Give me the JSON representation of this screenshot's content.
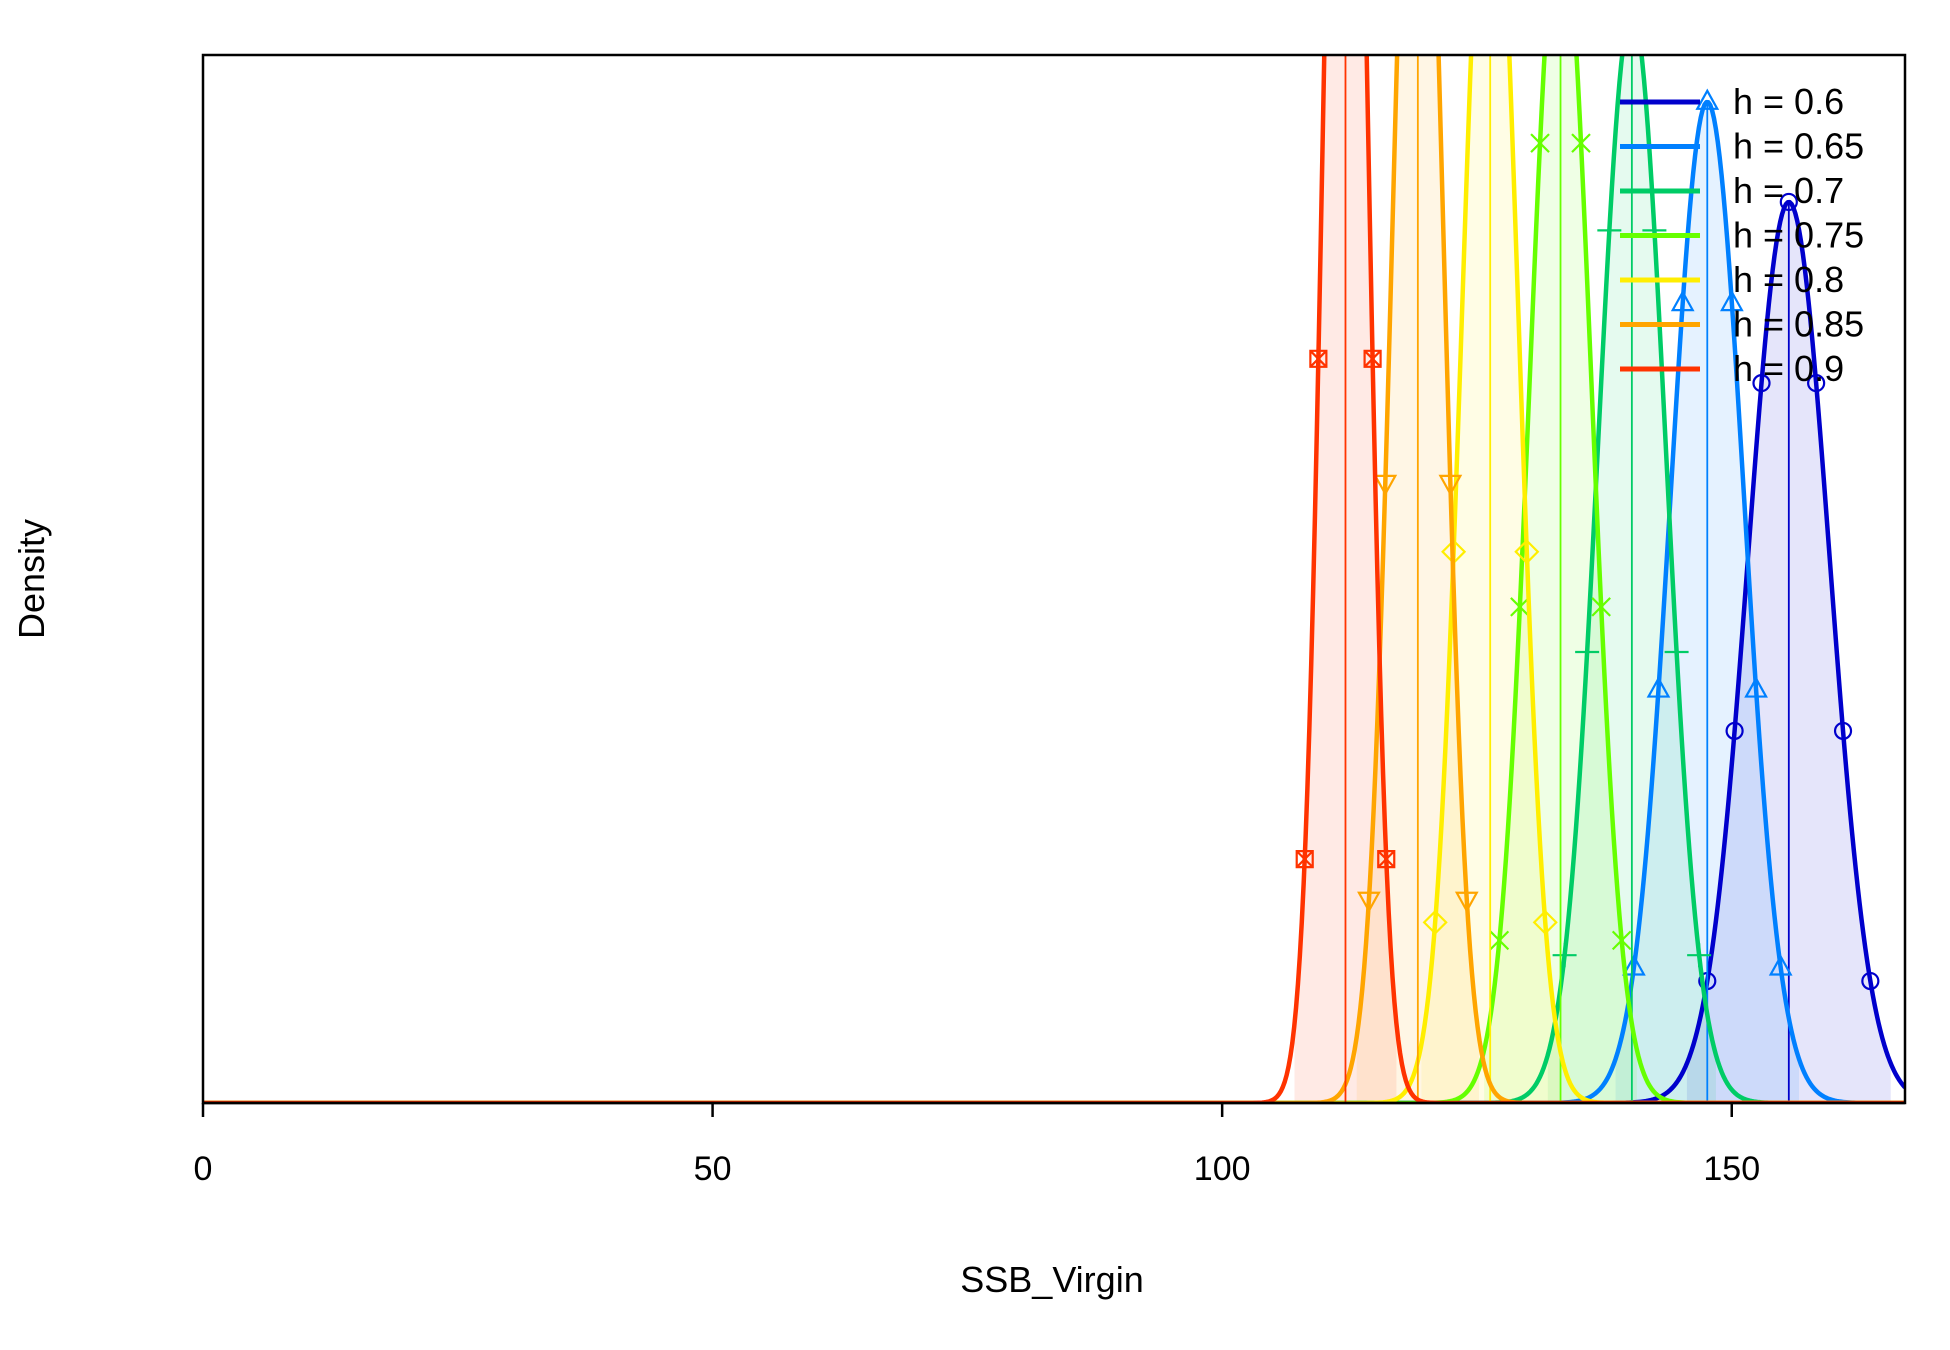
{
  "chart_data": {
    "type": "area",
    "title": "",
    "xlabel": "SSB_Virgin",
    "ylabel": "Density",
    "xlim": [
      0,
      167
    ],
    "ylim": [
      0,
      0.116
    ],
    "x_ticks": [
      0,
      50,
      100,
      150
    ],
    "x_tick_labels": [
      "0",
      "50",
      "100",
      "150"
    ],
    "y_ticks_shown": false,
    "grid": false,
    "legend_position": "top-right",
    "series": [
      {
        "name": "h = 0.6",
        "color": "#0000CC",
        "marker": "circle",
        "mean": 155.6,
        "sd": 4.0
      },
      {
        "name": "h = 0.65",
        "color": "#0080FF",
        "marker": "triangle-up",
        "mean": 147.6,
        "sd": 3.6
      },
      {
        "name": "h = 0.7",
        "color": "#00CC66",
        "marker": "plus",
        "mean": 140.2,
        "sd": 3.3
      },
      {
        "name": "h = 0.75",
        "color": "#66FF00",
        "marker": "cross",
        "mean": 133.2,
        "sd": 3.0
      },
      {
        "name": "h = 0.8",
        "color": "#FFEE00",
        "marker": "diamond",
        "mean": 126.3,
        "sd": 2.7
      },
      {
        "name": "h = 0.85",
        "color": "#FFA500",
        "marker": "triangle-down",
        "mean": 119.2,
        "sd": 2.4
      },
      {
        "name": "h = 0.9",
        "color": "#FF3300",
        "marker": "square-cross",
        "mean": 112.1,
        "sd": 2.0
      }
    ]
  }
}
